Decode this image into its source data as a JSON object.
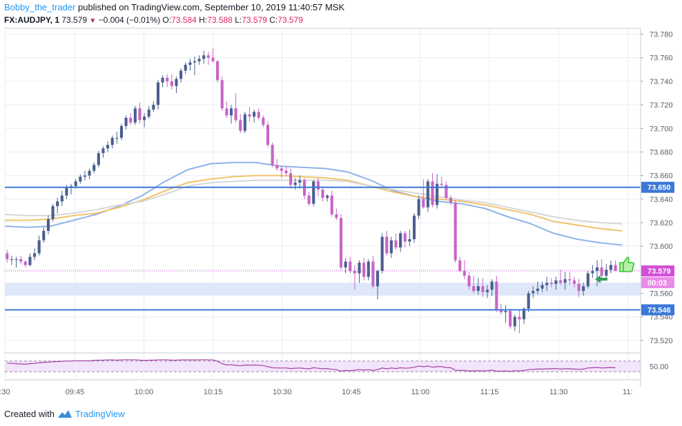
{
  "header": {
    "author": "Bobby_the_trader",
    "published_text": "published on TradingView.com, September 10, 2019 11:40:57 MSK",
    "symbol": "FX:AUDJPY, 1",
    "last": "73.579",
    "change_arrow": "▼",
    "change": "−0.004 (−0.01%)",
    "o_label": "O:",
    "o_value": "73.584",
    "h_label": "H:",
    "h_value": "73.588",
    "l_label": "L:",
    "l_value": "73.579",
    "c_label": "C:",
    "c_value": "73.579"
  },
  "footer": {
    "created_with": "Created with",
    "brand": "TradingView"
  },
  "colors": {
    "bull": "#4a5f8f",
    "bear": "#c864c8",
    "grid": "#e9ecf2",
    "hline": "#3b78d8",
    "band": "#dbe6f8",
    "ma_blue": "#8fb3ea",
    "ma_orange": "#f0c36a",
    "ma_gray": "#d6d6d6",
    "rsi": "#a33fa3",
    "rsi_band": "#f2e4fa",
    "price_tag": "#d14fd6",
    "level_tag": "#3b78d8"
  },
  "chart_data": {
    "type": "candlestick",
    "title": "FX:AUDJPY, 1",
    "price_axis": {
      "ticks": [
        "73.780",
        "73.760",
        "73.740",
        "73.720",
        "73.700",
        "73.680",
        "73.660",
        "73.640",
        "73.620",
        "73.600",
        "73.580",
        "73.560",
        "73.540",
        "73.520"
      ],
      "ylim": [
        73.51,
        73.785
      ]
    },
    "time_axis": {
      "ticks": [
        ":30",
        "09:45",
        "10:00",
        "10:15",
        "10:30",
        "10:45",
        "11:00",
        "11:15",
        "11:30",
        "11:"
      ],
      "xlim": [
        0,
        139
      ]
    },
    "horizontal_levels": [
      {
        "value": 73.65,
        "label": "73.650"
      },
      {
        "value": 73.546,
        "label": "73.546"
      }
    ],
    "support_band": [
      73.558,
      73.569
    ],
    "current_price": {
      "value": 73.579,
      "label": "73.579",
      "countdown": "00:03"
    },
    "candles": [
      [
        73.594,
        73.597,
        73.586,
        73.589
      ],
      [
        73.589,
        73.592,
        73.584,
        73.589
      ],
      [
        73.589,
        73.591,
        73.582,
        73.589
      ],
      [
        73.589,
        73.592,
        73.585,
        73.587
      ],
      [
        73.587,
        73.588,
        73.582,
        73.584
      ],
      [
        73.584,
        73.594,
        73.583,
        73.591
      ],
      [
        73.591,
        73.598,
        73.588,
        73.594
      ],
      [
        73.594,
        73.609,
        73.592,
        73.605
      ],
      [
        73.605,
        73.616,
        73.603,
        73.613
      ],
      [
        73.613,
        73.626,
        73.61,
        73.623
      ],
      [
        73.623,
        73.636,
        73.621,
        73.634
      ],
      [
        73.634,
        73.641,
        73.628,
        73.638
      ],
      [
        73.638,
        73.647,
        73.634,
        73.643
      ],
      [
        73.643,
        73.652,
        73.64,
        73.65
      ],
      [
        73.65,
        73.653,
        73.644,
        73.651
      ],
      [
        73.651,
        73.657,
        73.649,
        73.655
      ],
      [
        73.655,
        73.661,
        73.653,
        73.659
      ],
      [
        73.659,
        73.664,
        73.656,
        73.66
      ],
      [
        73.66,
        73.666,
        73.657,
        73.664
      ],
      [
        73.664,
        73.671,
        73.662,
        73.669
      ],
      [
        73.669,
        73.681,
        73.667,
        73.679
      ],
      [
        73.679,
        73.685,
        73.675,
        73.683
      ],
      [
        73.683,
        73.689,
        73.68,
        73.686
      ],
      [
        73.686,
        73.694,
        73.683,
        73.692
      ],
      [
        73.692,
        73.697,
        73.687,
        73.692
      ],
      [
        73.692,
        73.704,
        73.69,
        73.702
      ],
      [
        73.702,
        73.711,
        73.699,
        73.709
      ],
      [
        73.709,
        73.713,
        73.703,
        73.705
      ],
      [
        73.705,
        73.719,
        73.703,
        73.717
      ],
      [
        73.717,
        73.722,
        73.704,
        73.707
      ],
      [
        73.707,
        73.713,
        73.701,
        73.71
      ],
      [
        73.71,
        73.719,
        73.708,
        73.716
      ],
      [
        73.716,
        73.723,
        73.714,
        73.72
      ],
      [
        73.72,
        73.741,
        73.716,
        73.739
      ],
      [
        73.739,
        73.745,
        73.735,
        73.743
      ],
      [
        73.743,
        73.746,
        73.735,
        73.74
      ],
      [
        73.74,
        73.746,
        73.733,
        73.736
      ],
      [
        73.736,
        73.744,
        73.73,
        73.742
      ],
      [
        73.742,
        73.751,
        73.739,
        73.749
      ],
      [
        73.749,
        73.756,
        73.746,
        73.754
      ],
      [
        73.754,
        73.759,
        73.749,
        73.756
      ],
      [
        73.756,
        73.761,
        73.745,
        73.757
      ],
      [
        73.757,
        73.762,
        73.754,
        73.759
      ],
      [
        73.759,
        73.766,
        73.755,
        73.762
      ],
      [
        73.762,
        73.765,
        73.754,
        73.76
      ],
      [
        73.76,
        73.768,
        73.756,
        73.757
      ],
      [
        73.757,
        73.758,
        73.739,
        73.741
      ],
      [
        73.741,
        73.744,
        73.715,
        73.717
      ],
      [
        73.717,
        73.723,
        73.709,
        73.711
      ],
      [
        73.711,
        73.72,
        73.704,
        73.717
      ],
      [
        73.717,
        73.73,
        73.705,
        73.707
      ],
      [
        73.707,
        73.712,
        73.696,
        73.698
      ],
      [
        73.698,
        73.714,
        73.696,
        73.712
      ],
      [
        73.712,
        73.718,
        73.706,
        73.71
      ],
      [
        73.71,
        73.716,
        73.705,
        73.714
      ],
      [
        73.714,
        73.717,
        73.707,
        73.709
      ],
      [
        73.709,
        73.711,
        73.701,
        73.703
      ],
      [
        73.703,
        73.706,
        73.684,
        73.686
      ],
      [
        73.686,
        73.688,
        73.667,
        73.669
      ],
      [
        73.669,
        73.674,
        73.664,
        73.666
      ],
      [
        73.666,
        73.668,
        73.658,
        73.664
      ],
      [
        73.664,
        73.668,
        73.66,
        73.662
      ],
      [
        73.662,
        73.666,
        73.649,
        73.652
      ],
      [
        73.652,
        73.658,
        73.648,
        73.654
      ],
      [
        73.654,
        73.66,
        73.649,
        73.656
      ],
      [
        73.656,
        73.658,
        73.64,
        73.643
      ],
      [
        73.643,
        73.646,
        73.634,
        73.636
      ],
      [
        73.636,
        73.656,
        73.634,
        73.655
      ],
      [
        73.655,
        73.658,
        73.642,
        73.648
      ],
      [
        73.648,
        73.651,
        73.638,
        73.641
      ],
      [
        73.641,
        73.644,
        73.638,
        73.643
      ],
      [
        73.643,
        73.647,
        73.625,
        73.627
      ],
      [
        73.627,
        73.632,
        73.622,
        73.624
      ],
      [
        73.624,
        73.627,
        73.58,
        73.582
      ],
      [
        73.582,
        73.59,
        73.577,
        73.587
      ],
      [
        73.587,
        73.591,
        73.577,
        73.579
      ],
      [
        73.579,
        73.584,
        73.563,
        73.577
      ],
      [
        73.577,
        73.588,
        73.569,
        73.586
      ],
      [
        73.586,
        73.59,
        73.571,
        73.574
      ],
      [
        73.574,
        73.589,
        73.571,
        73.587
      ],
      [
        73.587,
        73.592,
        73.564,
        73.566
      ],
      [
        73.566,
        73.58,
        73.555,
        73.579
      ],
      [
        73.579,
        73.611,
        73.577,
        73.608
      ],
      [
        73.608,
        73.613,
        73.592,
        73.594
      ],
      [
        73.594,
        73.608,
        73.59,
        73.605
      ],
      [
        73.605,
        73.611,
        73.597,
        73.599
      ],
      [
        73.599,
        73.613,
        73.595,
        73.611
      ],
      [
        73.611,
        73.613,
        73.599,
        73.604
      ],
      [
        73.604,
        73.614,
        73.6,
        73.606
      ],
      [
        73.606,
        73.628,
        73.603,
        73.626
      ],
      [
        73.626,
        73.643,
        73.623,
        73.64
      ],
      [
        73.64,
        73.657,
        73.632,
        73.633
      ],
      [
        73.633,
        73.657,
        73.629,
        73.655
      ],
      [
        73.655,
        73.662,
        73.633,
        73.635
      ],
      [
        73.635,
        73.661,
        73.632,
        73.653
      ],
      [
        73.653,
        73.659,
        73.65,
        73.652
      ],
      [
        73.652,
        73.655,
        73.64,
        73.641
      ],
      [
        73.641,
        73.643,
        73.635,
        73.637
      ],
      [
        73.637,
        73.639,
        73.586,
        73.588
      ],
      [
        73.588,
        73.591,
        73.578,
        73.579
      ],
      [
        73.579,
        73.588,
        73.572,
        73.575
      ],
      [
        73.575,
        73.578,
        73.563,
        73.566
      ],
      [
        73.566,
        73.575,
        73.56,
        73.562
      ],
      [
        73.562,
        73.573,
        73.559,
        73.566
      ],
      [
        73.566,
        73.573,
        73.557,
        73.561
      ],
      [
        73.561,
        73.567,
        73.556,
        73.563
      ],
      [
        73.563,
        73.572,
        73.558,
        73.57
      ],
      [
        73.57,
        73.575,
        73.544,
        73.546
      ],
      [
        73.546,
        73.551,
        73.542,
        73.544
      ],
      [
        73.544,
        73.55,
        73.535,
        73.545
      ],
      [
        73.545,
        73.547,
        73.53,
        73.532
      ],
      [
        73.532,
        73.542,
        73.528,
        73.54
      ],
      [
        73.54,
        73.546,
        73.526,
        73.538
      ],
      [
        73.538,
        73.548,
        73.534,
        73.547
      ],
      [
        73.547,
        73.562,
        73.544,
        73.56
      ],
      [
        73.56,
        73.566,
        73.556,
        73.562
      ],
      [
        73.562,
        73.57,
        73.559,
        73.564
      ],
      [
        73.564,
        73.57,
        73.561,
        73.567
      ],
      [
        73.567,
        73.574,
        73.562,
        73.569
      ],
      [
        73.569,
        73.573,
        73.565,
        73.568
      ],
      [
        73.568,
        73.574,
        73.563,
        73.571
      ],
      [
        73.571,
        73.58,
        73.567,
        73.569
      ],
      [
        73.569,
        73.578,
        73.563,
        73.572
      ],
      [
        73.572,
        73.578,
        73.567,
        73.571
      ],
      [
        73.571,
        73.574,
        73.565,
        73.568
      ],
      [
        73.568,
        73.572,
        73.557,
        73.562
      ],
      [
        73.562,
        73.569,
        73.558,
        73.566
      ],
      [
        73.566,
        73.579,
        73.564,
        73.577
      ],
      [
        73.577,
        73.584,
        73.573,
        73.579
      ],
      [
        73.579,
        73.588,
        73.566,
        73.582
      ],
      [
        73.582,
        73.589,
        73.57,
        73.575
      ],
      [
        73.575,
        73.585,
        73.572,
        73.58
      ],
      [
        73.58,
        73.588,
        73.577,
        73.584
      ],
      [
        73.584,
        73.588,
        73.579,
        73.579
      ]
    ],
    "moving_averages": [
      {
        "color": "#8fb3ea",
        "points": [
          [
            0,
            73.617
          ],
          [
            5,
            73.616
          ],
          [
            10,
            73.617
          ],
          [
            15,
            73.622
          ],
          [
            20,
            73.627
          ],
          [
            25,
            73.634
          ],
          [
            30,
            73.643
          ],
          [
            35,
            73.655
          ],
          [
            40,
            73.665
          ],
          [
            45,
            73.67
          ],
          [
            50,
            73.671
          ],
          [
            55,
            73.671
          ],
          [
            60,
            73.668
          ],
          [
            65,
            73.667
          ],
          [
            70,
            73.666
          ],
          [
            75,
            73.663
          ],
          [
            80,
            73.656
          ],
          [
            85,
            73.647
          ],
          [
            90,
            73.642
          ],
          [
            95,
            73.638
          ],
          [
            100,
            73.636
          ],
          [
            105,
            73.632
          ],
          [
            110,
            73.625
          ],
          [
            115,
            73.619
          ],
          [
            120,
            73.611
          ],
          [
            125,
            73.606
          ],
          [
            130,
            73.603
          ],
          [
            135,
            73.601
          ]
        ]
      },
      {
        "color": "#f0c36a",
        "points": [
          [
            0,
            73.622
          ],
          [
            5,
            73.622
          ],
          [
            10,
            73.623
          ],
          [
            15,
            73.626
          ],
          [
            20,
            73.628
          ],
          [
            25,
            73.633
          ],
          [
            30,
            73.639
          ],
          [
            35,
            73.647
          ],
          [
            40,
            73.654
          ],
          [
            45,
            73.657
          ],
          [
            50,
            73.659
          ],
          [
            55,
            73.66
          ],
          [
            60,
            73.66
          ],
          [
            65,
            73.659
          ],
          [
            70,
            73.658
          ],
          [
            75,
            73.656
          ],
          [
            80,
            73.651
          ],
          [
            85,
            73.646
          ],
          [
            90,
            73.642
          ],
          [
            95,
            73.64
          ],
          [
            100,
            73.638
          ],
          [
            105,
            73.635
          ],
          [
            110,
            73.631
          ],
          [
            115,
            73.627
          ],
          [
            120,
            73.621
          ],
          [
            125,
            73.618
          ],
          [
            130,
            73.615
          ],
          [
            135,
            73.613
          ]
        ]
      },
      {
        "color": "#d6d6d6",
        "points": [
          [
            0,
            73.627
          ],
          [
            5,
            73.626
          ],
          [
            10,
            73.626
          ],
          [
            15,
            73.628
          ],
          [
            20,
            73.631
          ],
          [
            25,
            73.635
          ],
          [
            30,
            73.638
          ],
          [
            35,
            73.644
          ],
          [
            40,
            73.651
          ],
          [
            45,
            73.654
          ],
          [
            50,
            73.655
          ],
          [
            55,
            73.656
          ],
          [
            60,
            73.656
          ],
          [
            65,
            73.656
          ],
          [
            70,
            73.656
          ],
          [
            75,
            73.655
          ],
          [
            80,
            73.651
          ],
          [
            85,
            73.648
          ],
          [
            90,
            73.645
          ],
          [
            95,
            73.642
          ],
          [
            100,
            73.639
          ],
          [
            105,
            73.637
          ],
          [
            110,
            73.633
          ],
          [
            115,
            73.629
          ],
          [
            120,
            73.625
          ],
          [
            125,
            73.622
          ],
          [
            130,
            73.62
          ],
          [
            135,
            73.619
          ]
        ]
      }
    ],
    "rsi": {
      "label": "50.00",
      "band": [
        30,
        70
      ],
      "values": [
        62,
        61,
        60,
        59,
        58,
        60,
        61,
        63,
        65,
        66,
        67,
        68,
        69,
        70,
        70,
        71,
        71,
        71,
        71,
        72,
        73,
        73,
        74,
        74,
        73,
        74,
        75,
        74,
        75,
        73,
        72,
        73,
        73,
        74,
        75,
        74,
        73,
        73,
        74,
        74,
        74,
        74,
        74,
        75,
        74,
        74,
        69,
        60,
        55,
        56,
        54,
        52,
        55,
        54,
        55,
        54,
        53,
        49,
        45,
        44,
        44,
        44,
        42,
        43,
        44,
        42,
        41,
        45,
        43,
        41,
        42,
        39,
        38,
        32,
        35,
        34,
        36,
        38,
        36,
        38,
        35,
        38,
        44,
        41,
        44,
        42,
        45,
        43,
        44,
        47,
        51,
        49,
        51,
        47,
        49,
        49,
        46,
        45,
        36,
        35,
        35,
        33,
        33,
        34,
        33,
        34,
        36,
        32,
        32,
        33,
        31,
        34,
        33,
        35,
        38,
        39,
        40,
        40,
        41,
        41,
        42,
        40,
        41,
        41,
        40,
        39,
        40,
        44,
        45,
        46,
        44,
        45,
        46,
        45
      ]
    }
  }
}
